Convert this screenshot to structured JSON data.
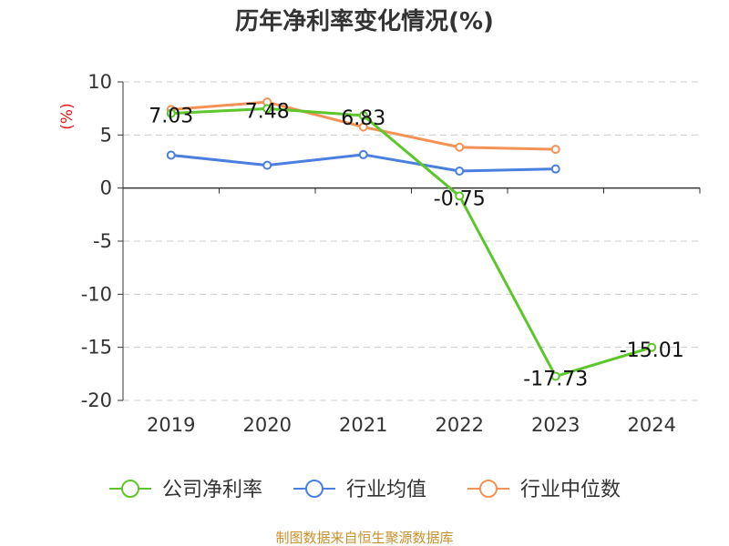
{
  "chart_data": {
    "type": "line",
    "title": "历年净利率变化情况(%)",
    "ylabel": "(%)",
    "categories": [
      "2019",
      "2020",
      "2021",
      "2022",
      "2023",
      "2024"
    ],
    "ylim": [
      -20,
      10
    ],
    "yticks": [
      10,
      5,
      0,
      -5,
      -10,
      -15,
      -20
    ],
    "grid": true,
    "legend_position": "bottom",
    "series": [
      {
        "name": "公司净利率",
        "color": "#5cc62a",
        "values": [
          7.03,
          7.48,
          6.83,
          -0.75,
          -17.73,
          -15.01
        ],
        "labels": [
          "7.03",
          "7.48",
          "6.83",
          "-0.75",
          "-17.73",
          "-15.01"
        ]
      },
      {
        "name": "行业均值",
        "color": "#4a7fe0",
        "values": [
          3.1,
          2.15,
          3.15,
          1.6,
          1.8,
          null
        ]
      },
      {
        "name": "行业中位数",
        "color": "#f39256",
        "values": [
          7.4,
          8.1,
          5.75,
          3.85,
          3.65,
          null
        ]
      }
    ]
  },
  "source_text": "制图数据来自恒生聚源数据库"
}
